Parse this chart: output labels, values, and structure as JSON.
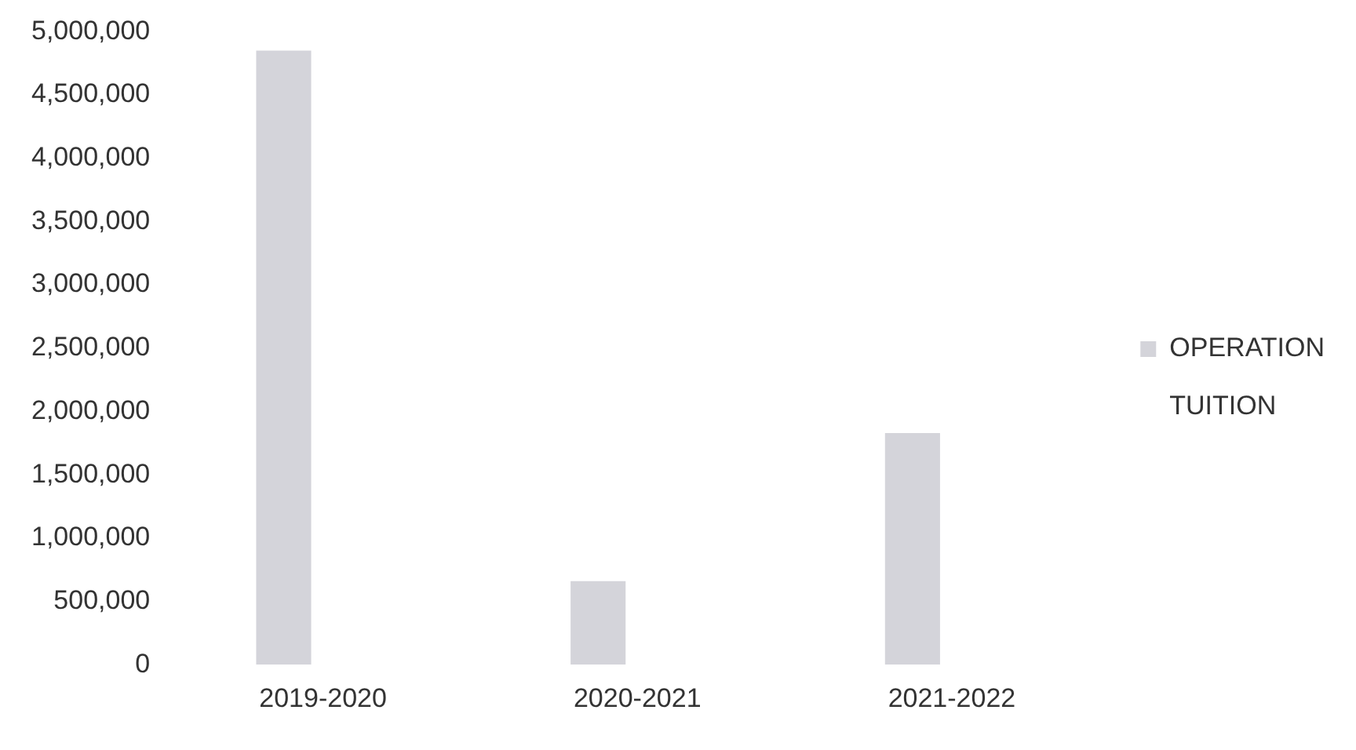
{
  "chart_data": {
    "type": "bar",
    "categories": [
      "2019-2020",
      "2020-2021",
      "2021-2022"
    ],
    "series": [
      {
        "name": "OPERATION",
        "color": "#d4d4da",
        "values": [
          4850000,
          660000,
          1830000
        ]
      },
      {
        "name": "TUITION",
        "values": [
          null,
          null,
          null
        ]
      }
    ],
    "ylim": [
      0,
      5000000
    ],
    "yticks": [
      0,
      {
        "value": 500000,
        "label": "500,000"
      },
      {
        "value": 1000000,
        "label": "1,000,000"
      },
      {
        "value": 1500000,
        "label": "1,500,000"
      },
      {
        "value": 2000000,
        "label": "2,000,000"
      },
      {
        "value": 2500000,
        "label": "2,500,000"
      },
      {
        "value": 3000000,
        "label": "3,000,000"
      },
      {
        "value": 3500000,
        "label": "3,500,000"
      },
      {
        "value": 4000000,
        "label": "4,000,000"
      },
      {
        "value": 4500000,
        "label": "4,500,000"
      },
      {
        "value": 5000000,
        "label": "5,000,000"
      }
    ],
    "grid": false,
    "legend": "right"
  }
}
